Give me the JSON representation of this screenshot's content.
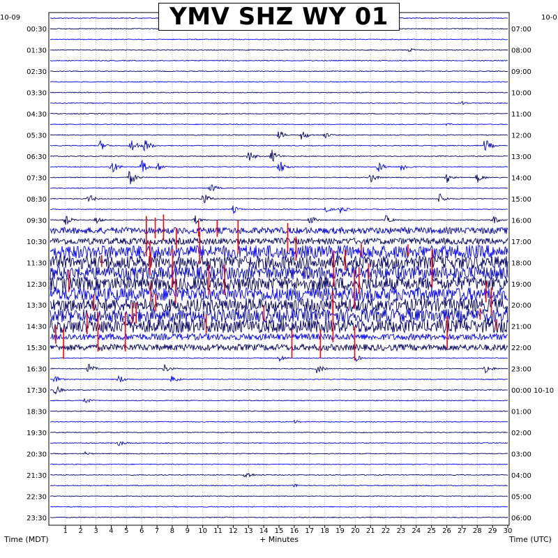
{
  "title": "YMV SHZ WY 01",
  "date_left": "10-09",
  "date_right": "10-0",
  "xlabel_left": "Time (MDT)",
  "xlabel_center": "+ Minutes",
  "xlabel_right": "Time (UTC)",
  "colors": {
    "trace_a": "#0000c8",
    "trace_b": "#000066",
    "trace_c": "#0000ff",
    "clip": "#ff0000",
    "grid": "#888888"
  },
  "chart_data": {
    "type": "line",
    "x_range": [
      0,
      30
    ],
    "x_ticks": [
      "1",
      "2",
      "3",
      "4",
      "5",
      "6",
      "7",
      "8",
      "9",
      "10",
      "11",
      "12",
      "13",
      "14",
      "15",
      "16",
      "17",
      "18",
      "19",
      "20",
      "21",
      "22",
      "23",
      "24",
      "25",
      "26",
      "27",
      "28",
      "29",
      "30"
    ],
    "left_ticks": [
      "00:30",
      "01:30",
      "02:30",
      "03:30",
      "04:30",
      "05:30",
      "06:30",
      "07:30",
      "08:30",
      "09:30",
      "10:30",
      "11:30",
      "12:30",
      "13:30",
      "14:30",
      "15:30",
      "16:30",
      "17:30",
      "18:30",
      "19:30",
      "20:30",
      "21:30",
      "22:30",
      "23:30"
    ],
    "right_ticks": [
      "07:00",
      "08:00",
      "09:00",
      "10:00",
      "11:00",
      "12:00",
      "13:00",
      "14:00",
      "15:00",
      "16:00",
      "17:00",
      "18:00",
      "19:00",
      "20:00",
      "21:00",
      "22:00",
      "23:00",
      "00:00 10-10",
      "01:00",
      "02:00",
      "03:00",
      "04:00",
      "05:00",
      "06:00"
    ],
    "trace_count": 48,
    "colors_cycle": [
      "trace_a",
      "trace_b",
      "trace_c",
      "trace_b"
    ],
    "events": [
      {
        "trace": 0,
        "minute": 20,
        "amp": 3
      },
      {
        "trace": 3,
        "minute": 23.5,
        "amp": 4
      },
      {
        "trace": 8,
        "minute": 27,
        "amp": 3
      },
      {
        "trace": 10,
        "minute": 26,
        "amp": 2
      },
      {
        "trace": 11,
        "minute": 15,
        "amp": 7
      },
      {
        "trace": 11,
        "minute": 16.5,
        "amp": 9
      },
      {
        "trace": 11,
        "minute": 18,
        "amp": 5
      },
      {
        "trace": 12,
        "minute": 3.3,
        "amp": 8
      },
      {
        "trace": 12,
        "minute": 5.3,
        "amp": 12
      },
      {
        "trace": 12,
        "minute": 6.2,
        "amp": 11
      },
      {
        "trace": 12,
        "minute": 28.5,
        "amp": 11
      },
      {
        "trace": 13,
        "minute": 13,
        "amp": 9
      },
      {
        "trace": 13,
        "minute": 14.5,
        "amp": 11
      },
      {
        "trace": 14,
        "minute": 4,
        "amp": 12
      },
      {
        "trace": 14,
        "minute": 6,
        "amp": 11
      },
      {
        "trace": 14,
        "minute": 7,
        "amp": 8
      },
      {
        "trace": 14,
        "minute": 15,
        "amp": 12
      },
      {
        "trace": 14,
        "minute": 21.5,
        "amp": 9
      },
      {
        "trace": 14,
        "minute": 23,
        "amp": 9
      },
      {
        "trace": 15,
        "minute": 5.2,
        "amp": 12
      },
      {
        "trace": 15,
        "minute": 21,
        "amp": 8
      },
      {
        "trace": 15,
        "minute": 26,
        "amp": 8
      },
      {
        "trace": 15,
        "minute": 28,
        "amp": 8
      },
      {
        "trace": 16,
        "minute": 10.5,
        "amp": 8
      },
      {
        "trace": 17,
        "minute": 2.5,
        "amp": 8
      },
      {
        "trace": 17,
        "minute": 10,
        "amp": 10
      },
      {
        "trace": 17,
        "minute": 25.5,
        "amp": 9
      },
      {
        "trace": 18,
        "minute": 12,
        "amp": 6
      },
      {
        "trace": 18,
        "minute": 18,
        "amp": 6
      },
      {
        "trace": 18,
        "minute": 19,
        "amp": 7
      },
      {
        "trace": 19,
        "minute": 1,
        "amp": 8
      },
      {
        "trace": 19,
        "minute": 3,
        "amp": 6
      },
      {
        "trace": 19,
        "minute": 9.5,
        "amp": 7
      },
      {
        "trace": 19,
        "minute": 17,
        "amp": 8
      },
      {
        "trace": 19,
        "minute": 22,
        "amp": 7
      },
      {
        "trace": 19,
        "minute": 29,
        "amp": 8
      },
      {
        "trace": 32,
        "minute": 15,
        "amp": 6
      },
      {
        "trace": 32,
        "minute": 20,
        "amp": 6
      },
      {
        "trace": 33,
        "minute": 2.5,
        "amp": 8
      },
      {
        "trace": 33,
        "minute": 7.5,
        "amp": 7
      },
      {
        "trace": 33,
        "minute": 17.5,
        "amp": 8
      },
      {
        "trace": 33,
        "minute": 28.5,
        "amp": 9
      },
      {
        "trace": 34,
        "minute": 0.3,
        "amp": 6
      },
      {
        "trace": 34,
        "minute": 4.5,
        "amp": 7
      },
      {
        "trace": 34,
        "minute": 8,
        "amp": 7
      },
      {
        "trace": 35,
        "minute": 0.3,
        "amp": 8
      },
      {
        "trace": 36,
        "minute": 2.3,
        "amp": 5
      },
      {
        "trace": 38,
        "minute": 16,
        "amp": 3
      },
      {
        "trace": 40,
        "minute": 4.5,
        "amp": 5
      },
      {
        "trace": 41,
        "minute": 2.3,
        "amp": 3
      },
      {
        "trace": 43,
        "minute": 12.8,
        "amp": 7
      },
      {
        "trace": 44,
        "minute": 16,
        "amp": 3
      }
    ],
    "busy_traces": [
      {
        "from": 20,
        "to": 31,
        "level": 4
      },
      {
        "from": 22,
        "to": 29,
        "level": 9
      }
    ],
    "clip_traces": [
      20,
      21,
      22,
      23,
      24,
      25,
      26,
      27,
      28,
      29,
      30,
      31
    ]
  }
}
